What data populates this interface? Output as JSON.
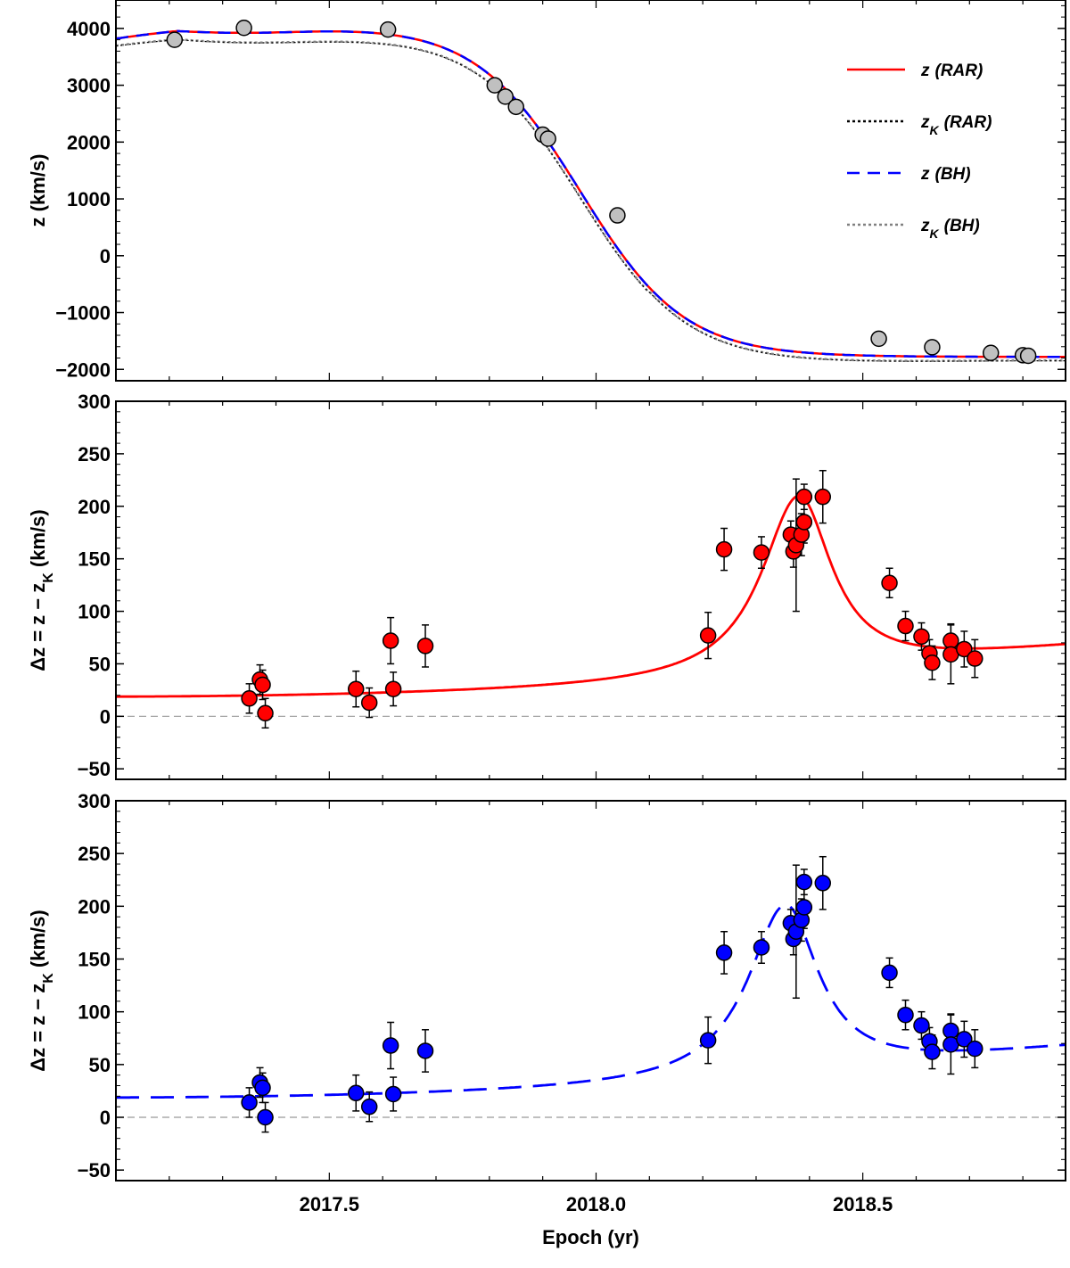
{
  "chart_data": [
    {
      "id": "top",
      "type": "line",
      "ylabel": "z (km/s)",
      "xlim": [
        2017.1,
        2018.88
      ],
      "ylim": [
        -2200,
        4500
      ],
      "yticks": [
        -2000,
        -1000,
        0,
        1000,
        2000,
        3000,
        4000
      ],
      "legend_position": "top-right",
      "legend": [
        {
          "main": "z",
          "sub": "",
          "model": "(RAR)",
          "color": "#ff0000",
          "dash": "solid"
        },
        {
          "main": "z",
          "sub": "K",
          "model": "(RAR)",
          "color": "#000000",
          "dash": "dotted"
        },
        {
          "main": "z",
          "sub": "",
          "model": "(BH)",
          "color": "#0000ff",
          "dash": "dashed"
        },
        {
          "main": "z",
          "sub": "K",
          "model": "(BH)",
          "color": "#808080",
          "dash": "dotted"
        }
      ],
      "points": [
        {
          "x": 2017.21,
          "y": 3800
        },
        {
          "x": 2017.34,
          "y": 4010
        },
        {
          "x": 2017.61,
          "y": 3980
        },
        {
          "x": 2017.81,
          "y": 3000
        },
        {
          "x": 2017.83,
          "y": 2800
        },
        {
          "x": 2017.85,
          "y": 2620
        },
        {
          "x": 2017.9,
          "y": 2130
        },
        {
          "x": 2017.91,
          "y": 2060
        },
        {
          "x": 2018.04,
          "y": 710
        },
        {
          "x": 2018.53,
          "y": -1460
        },
        {
          "x": 2018.63,
          "y": -1610
        },
        {
          "x": 2018.74,
          "y": -1710
        },
        {
          "x": 2018.8,
          "y": -1750
        },
        {
          "x": 2018.81,
          "y": -1760
        }
      ],
      "point_color": "#c0c0c0"
    },
    {
      "id": "middle",
      "type": "scatter",
      "ylabel": "Δz = z − zK (km/s)",
      "xlim": [
        2017.1,
        2018.88
      ],
      "ylim": [
        -60,
        300
      ],
      "yticks": [
        -50,
        0,
        50,
        100,
        150,
        200,
        250,
        300
      ],
      "curve": {
        "name": "RAR",
        "color": "#ff0000",
        "dash": "solid",
        "peak_x": 2018.38,
        "peak_y": 205
      },
      "points": [
        {
          "x": 2017.35,
          "y": 17,
          "err": 14
        },
        {
          "x": 2017.37,
          "y": 35,
          "err": 14
        },
        {
          "x": 2017.375,
          "y": 30,
          "err": 14
        },
        {
          "x": 2017.38,
          "y": 3,
          "err": 14
        },
        {
          "x": 2017.55,
          "y": 26,
          "err": 17
        },
        {
          "x": 2017.575,
          "y": 13,
          "err": 14
        },
        {
          "x": 2017.615,
          "y": 72,
          "err": 22
        },
        {
          "x": 2017.62,
          "y": 26,
          "err": 16
        },
        {
          "x": 2017.68,
          "y": 67,
          "err": 20
        },
        {
          "x": 2018.21,
          "y": 77,
          "err": 22
        },
        {
          "x": 2018.24,
          "y": 159,
          "err": 20
        },
        {
          "x": 2018.31,
          "y": 156,
          "err": 15
        },
        {
          "x": 2018.365,
          "y": 173,
          "err": 13
        },
        {
          "x": 2018.37,
          "y": 157,
          "err": 15
        },
        {
          "x": 2018.375,
          "y": 163,
          "err": 63
        },
        {
          "x": 2018.385,
          "y": 173,
          "err": 20
        },
        {
          "x": 2018.39,
          "y": 185,
          "err": 20
        },
        {
          "x": 2018.39,
          "y": 209,
          "err": 12
        },
        {
          "x": 2018.425,
          "y": 209,
          "err": 25
        },
        {
          "x": 2018.55,
          "y": 127,
          "err": 14
        },
        {
          "x": 2018.58,
          "y": 86,
          "err": 14
        },
        {
          "x": 2018.61,
          "y": 76,
          "err": 13
        },
        {
          "x": 2018.625,
          "y": 60,
          "err": 13
        },
        {
          "x": 2018.63,
          "y": 51,
          "err": 16
        },
        {
          "x": 2018.665,
          "y": 72,
          "err": 16
        },
        {
          "x": 2018.665,
          "y": 59,
          "err": 28
        },
        {
          "x": 2018.69,
          "y": 64,
          "err": 17
        },
        {
          "x": 2018.71,
          "y": 55,
          "err": 18
        }
      ],
      "point_color": "#ff0000"
    },
    {
      "id": "bottom",
      "type": "scatter",
      "ylabel": "Δz = z − zK (km/s)",
      "xlabel": "Epoch (yr)",
      "xlim": [
        2017.1,
        2018.88
      ],
      "xticks": [
        "2017.5",
        "2018.0",
        "2018.5"
      ],
      "ylim": [
        -60,
        300
      ],
      "yticks": [
        -50,
        0,
        50,
        100,
        150,
        200,
        250,
        300
      ],
      "curve": {
        "name": "BH",
        "color": "#0000ff",
        "dash": "dashed",
        "peak_x": 2018.355,
        "peak_y": 197
      },
      "points": [
        {
          "x": 2017.35,
          "y": 14,
          "err": 14
        },
        {
          "x": 2017.37,
          "y": 33,
          "err": 14
        },
        {
          "x": 2017.375,
          "y": 28,
          "err": 14
        },
        {
          "x": 2017.38,
          "y": 0,
          "err": 14
        },
        {
          "x": 2017.55,
          "y": 23,
          "err": 17
        },
        {
          "x": 2017.575,
          "y": 10,
          "err": 14
        },
        {
          "x": 2017.615,
          "y": 68,
          "err": 22
        },
        {
          "x": 2017.62,
          "y": 22,
          "err": 16
        },
        {
          "x": 2017.68,
          "y": 63,
          "err": 20
        },
        {
          "x": 2018.21,
          "y": 73,
          "err": 22
        },
        {
          "x": 2018.24,
          "y": 156,
          "err": 20
        },
        {
          "x": 2018.31,
          "y": 161,
          "err": 15
        },
        {
          "x": 2018.365,
          "y": 184,
          "err": 13
        },
        {
          "x": 2018.37,
          "y": 169,
          "err": 15
        },
        {
          "x": 2018.375,
          "y": 176,
          "err": 63
        },
        {
          "x": 2018.385,
          "y": 187,
          "err": 20
        },
        {
          "x": 2018.39,
          "y": 199,
          "err": 20
        },
        {
          "x": 2018.39,
          "y": 223,
          "err": 12
        },
        {
          "x": 2018.425,
          "y": 222,
          "err": 25
        },
        {
          "x": 2018.55,
          "y": 137,
          "err": 14
        },
        {
          "x": 2018.58,
          "y": 97,
          "err": 14
        },
        {
          "x": 2018.61,
          "y": 87,
          "err": 13
        },
        {
          "x": 2018.625,
          "y": 72,
          "err": 13
        },
        {
          "x": 2018.63,
          "y": 62,
          "err": 16
        },
        {
          "x": 2018.665,
          "y": 82,
          "err": 16
        },
        {
          "x": 2018.665,
          "y": 69,
          "err": 28
        },
        {
          "x": 2018.69,
          "y": 74,
          "err": 17
        },
        {
          "x": 2018.71,
          "y": 65,
          "err": 18
        }
      ],
      "point_color": "#0000ff"
    }
  ]
}
